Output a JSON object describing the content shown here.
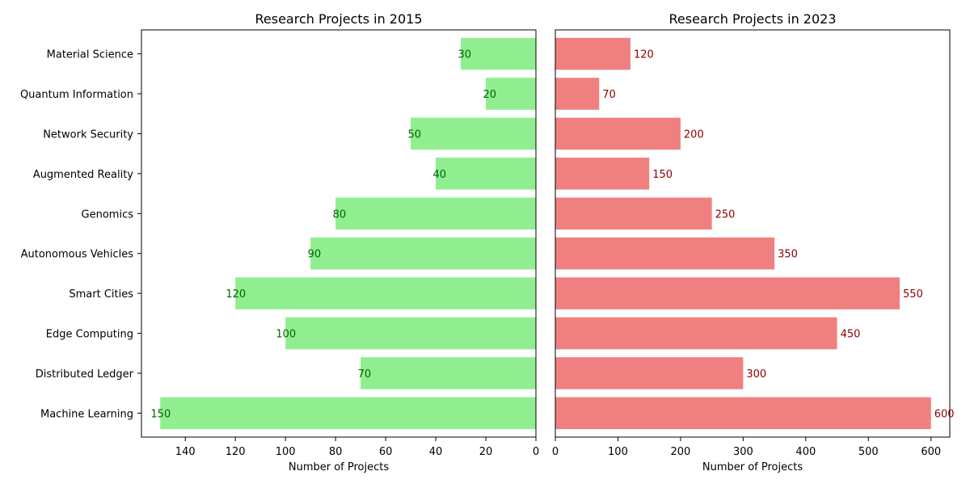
{
  "chart_data": [
    {
      "type": "bar",
      "orientation": "horizontal",
      "x_inverted": true,
      "title": "Research Projects in 2015",
      "xlabel": "Number of Projects",
      "ylabel": "",
      "categories": [
        "Material Science",
        "Quantum Information",
        "Network Security",
        "Augmented Reality",
        "Genomics",
        "Autonomous Vehicles",
        "Smart Cities",
        "Edge Computing",
        "Distributed Ledger",
        "Machine Learning"
      ],
      "values": [
        30,
        20,
        50,
        40,
        80,
        90,
        120,
        100,
        70,
        150
      ],
      "xlim": [
        0,
        157.5
      ],
      "xticks": [
        0,
        20,
        40,
        60,
        80,
        100,
        120,
        140
      ],
      "bar_color": "#90ee90",
      "label_color": "#006400",
      "grid": false
    },
    {
      "type": "bar",
      "orientation": "horizontal",
      "x_inverted": false,
      "title": "Research Projects in 2023",
      "xlabel": "Number of Projects",
      "ylabel": "",
      "categories": [
        "Material Science",
        "Quantum Information",
        "Network Security",
        "Augmented Reality",
        "Genomics",
        "Autonomous Vehicles",
        "Smart Cities",
        "Edge Computing",
        "Distributed Ledger",
        "Machine Learning"
      ],
      "values": [
        120,
        70,
        200,
        150,
        250,
        350,
        550,
        450,
        300,
        600
      ],
      "xlim": [
        0,
        630
      ],
      "xticks": [
        0,
        100,
        200,
        300,
        400,
        500,
        600
      ],
      "bar_color": "#f08080",
      "label_color": "#8b0000",
      "grid": false
    }
  ]
}
